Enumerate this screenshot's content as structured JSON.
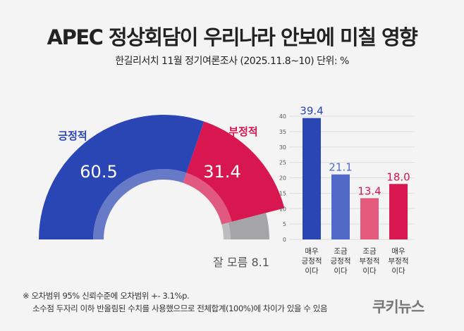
{
  "title": "APEC 정상회담이 우리나라 안보에 미칠 영향",
  "subtitle": "한길리서치 11월 정기여론조사 (2025.11.8~10) 단위: %",
  "chart_data": [
    {
      "type": "pie",
      "style": "semi-donut",
      "slices": [
        {
          "label": "긍정적",
          "value": 60.5,
          "color": "#2a46b5"
        },
        {
          "label": "부정적",
          "value": 31.4,
          "color": "#d81750"
        },
        {
          "label": "잘 모름",
          "value": 8.1,
          "color": "#a5a5a8"
        }
      ]
    },
    {
      "type": "bar",
      "categories": [
        "매우 긍정적 이다",
        "조금 긍정적 이다",
        "조금 부정적 이다",
        "매우 부정적 이다"
      ],
      "values": [
        39.4,
        21.1,
        13.4,
        18.0
      ],
      "value_labels": [
        "39.4",
        "21.1",
        "13.4",
        "18.0"
      ],
      "colors": [
        "#2a46b5",
        "#5169c7",
        "#e45a7c",
        "#d81750"
      ],
      "ylim": [
        0,
        40
      ],
      "yticks": [
        0,
        5,
        10,
        15,
        20,
        25,
        30,
        35,
        40
      ],
      "grid": true
    }
  ],
  "notes": [
    "※ 오차범위 95% 신뢰수준에 오차범위 +- 3.1%p.",
    "소수점 두자리 이하 반올림된 수치를 사용했으므로 전체합계(100%)에 차이가 있을 수 있음"
  ],
  "logo": "쿠키뉴스"
}
